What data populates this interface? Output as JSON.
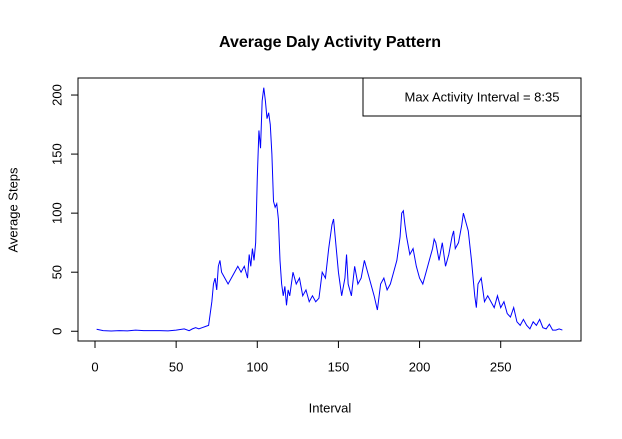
{
  "chart_data": {
    "type": "line",
    "title": "Average Daly Activity Pattern",
    "xlabel": "Interval",
    "ylabel": "Average Steps",
    "annotation": "Max Activity Interval = 8:35",
    "x": [
      1,
      5,
      10,
      15,
      20,
      25,
      30,
      35,
      40,
      45,
      50,
      55,
      58,
      60,
      62,
      64,
      66,
      68,
      70,
      72,
      73,
      74,
      75,
      76,
      77,
      78,
      80,
      82,
      84,
      86,
      88,
      90,
      92,
      94,
      95,
      96,
      97,
      98,
      99,
      100,
      101,
      102,
      103,
      104,
      105,
      106,
      107,
      108,
      109,
      110,
      111,
      112,
      113,
      114,
      115,
      116,
      117,
      118,
      119,
      120,
      121,
      122,
      123,
      124,
      126,
      128,
      130,
      132,
      134,
      136,
      138,
      140,
      142,
      144,
      146,
      147,
      148,
      150,
      152,
      154,
      155,
      156,
      158,
      160,
      162,
      164,
      166,
      168,
      170,
      172,
      174,
      176,
      178,
      180,
      182,
      184,
      186,
      188,
      189,
      190,
      191,
      192,
      194,
      196,
      198,
      200,
      202,
      204,
      206,
      208,
      209,
      210,
      212,
      214,
      216,
      218,
      220,
      221,
      222,
      224,
      226,
      227,
      228,
      230,
      232,
      234,
      235,
      236,
      238,
      240,
      242,
      244,
      246,
      248,
      250,
      252,
      254,
      256,
      258,
      260,
      262,
      264,
      266,
      268,
      270,
      272,
      274,
      276,
      278,
      280,
      282,
      284,
      286,
      288
    ],
    "series": [
      {
        "name": "Average Steps",
        "color": "#0000ff",
        "values": [
          1.7,
          0.5,
          0.2,
          0.5,
          0.3,
          1,
          0.5,
          0.5,
          0.5,
          0.3,
          1,
          2,
          0.5,
          2,
          3,
          2,
          3,
          4,
          5,
          25,
          40,
          45,
          35,
          55,
          60,
          50,
          45,
          40,
          45,
          50,
          55,
          50,
          55,
          45,
          65,
          55,
          70,
          60,
          75,
          130,
          170,
          155,
          195,
          206.17,
          195,
          180,
          185,
          175,
          150,
          110,
          105,
          108,
          95,
          60,
          40,
          30,
          38,
          22,
          35,
          30,
          40,
          50,
          45,
          40,
          45,
          30,
          35,
          25,
          30,
          25,
          28,
          50,
          45,
          70,
          90,
          95,
          80,
          50,
          30,
          45,
          65,
          40,
          30,
          55,
          40,
          45,
          60,
          50,
          40,
          30,
          18,
          40,
          45,
          35,
          40,
          50,
          60,
          80,
          100,
          102,
          90,
          80,
          65,
          70,
          55,
          45,
          40,
          50,
          60,
          70,
          78,
          75,
          60,
          75,
          55,
          65,
          80,
          85,
          70,
          75,
          90,
          100,
          95,
          85,
          60,
          30,
          20,
          40,
          45,
          25,
          30,
          25,
          20,
          30,
          20,
          25,
          15,
          12,
          20,
          8,
          5,
          10,
          5,
          2,
          8,
          5,
          10,
          3,
          2,
          6,
          1,
          1,
          2,
          1
        ]
      }
    ],
    "xlim": [
      -10.48,
      299.48
    ],
    "ylim": [
      -8.25,
      214.42
    ],
    "xticks": [
      0,
      50,
      100,
      150,
      200,
      250
    ],
    "yticks": [
      0,
      50,
      100,
      150,
      200
    ]
  }
}
